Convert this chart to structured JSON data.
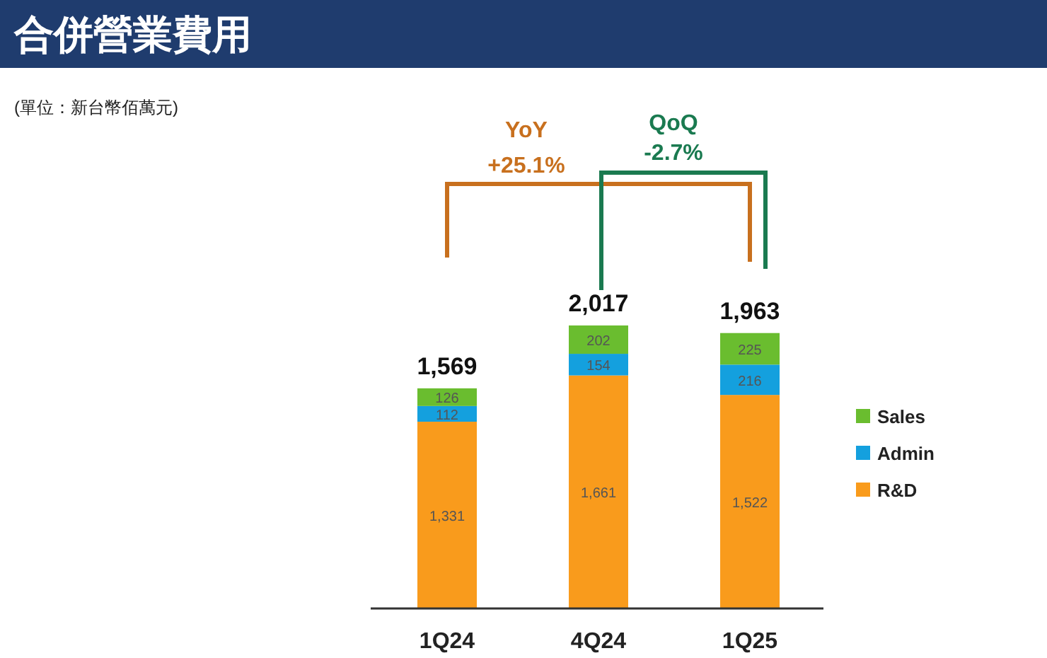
{
  "chart_data": {
    "type": "bar",
    "title": "合併營業費用",
    "subtitle": "(單位：新台幣佰萬元)",
    "categories": [
      "1Q24",
      "4Q24",
      "1Q25"
    ],
    "stacked": true,
    "legend": "right",
    "series": [
      {
        "name": "R&D",
        "color": "#f99b1c",
        "values": [
          1331,
          1661,
          1522
        ],
        "value_labels": [
          "1,331",
          "1,661",
          "1,522"
        ]
      },
      {
        "name": "Admin",
        "color": "#14a0de",
        "values": [
          112,
          154,
          216
        ],
        "value_labels": [
          "112",
          "154",
          "216"
        ]
      },
      {
        "name": "Sales",
        "color": "#6abd2f",
        "values": [
          126,
          202,
          225
        ],
        "value_labels": [
          "126",
          "202",
          "225"
        ]
      }
    ],
    "totals": [
      "1,569",
      "2,017",
      "1,963"
    ],
    "annotations": [
      "YoY",
      "+25.1%",
      "QoQ",
      "-2.7%"
    ]
  }
}
